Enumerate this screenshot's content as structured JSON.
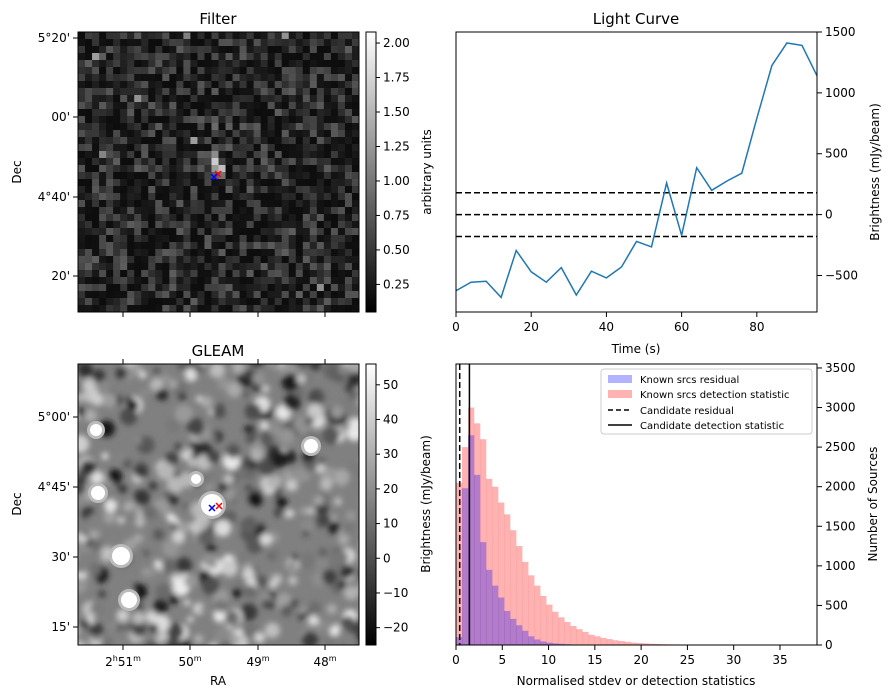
{
  "chart_data": [
    {
      "type": "heatmap",
      "title": "Filter",
      "ylabel": "Dec",
      "y_ticks": [
        "5°20'",
        "00'",
        "4°40'",
        "20'"
      ],
      "colorbar": {
        "label": "arbitrary units",
        "range": [
          0.05,
          2.08
        ],
        "ticks": [
          "0.25",
          "0.50",
          "0.75",
          "1.00",
          "1.25",
          "1.50",
          "1.75",
          "2.00"
        ],
        "tick_values": [
          0.25,
          0.5,
          0.75,
          1.0,
          1.25,
          1.5,
          1.75,
          2.0
        ]
      },
      "markers": [
        {
          "symbol": "x",
          "color": "#ff0000"
        },
        {
          "symbol": "x",
          "color": "#0000ff"
        }
      ]
    },
    {
      "type": "line",
      "title": "Light Curve",
      "xlabel": "Time (s)",
      "ylabel": "Brightness (mJy/beam)",
      "xlim": [
        0,
        96
      ],
      "ylim": [
        -800,
        1500
      ],
      "x_ticks": [
        0,
        20,
        40,
        60,
        80
      ],
      "y_ticks": [
        -500,
        0,
        500,
        1000,
        1500
      ],
      "series": [
        {
          "color": "#1f77b4",
          "x": [
            0,
            4,
            8,
            12,
            16,
            20,
            24,
            28,
            32,
            36,
            40,
            44,
            48,
            52,
            56,
            60,
            64,
            68,
            72,
            76,
            80,
            84,
            88,
            92,
            96
          ],
          "y": [
            -625,
            -555,
            -548,
            -680,
            -295,
            -470,
            -555,
            -435,
            -660,
            -465,
            -520,
            -430,
            -220,
            -265,
            260,
            -170,
            385,
            200,
            275,
            340,
            790,
            1225,
            1410,
            1390,
            1140
          ]
        }
      ],
      "hlines": [
        {
          "y": 180,
          "style": "dashed",
          "color": "#000000"
        },
        {
          "y": 0,
          "style": "dashed",
          "color": "#000000"
        },
        {
          "y": -180,
          "style": "dashed",
          "color": "#000000"
        }
      ]
    },
    {
      "type": "heatmap",
      "title": "GLEAM",
      "xlabel": "RA",
      "ylabel": "Dec",
      "y_ticks": [
        "5°00'",
        "4°45'",
        "30'",
        "15'"
      ],
      "x_ticks": [
        {
          "main": "2",
          "sup1": "h",
          "mid": "51",
          "sup2": "m"
        },
        {
          "main": "50",
          "sup2": "m"
        },
        {
          "main": "49",
          "sup2": "m"
        },
        {
          "main": "48",
          "sup2": "m"
        }
      ],
      "colorbar": {
        "label": "Brightness (mJy/beam)",
        "range": [
          -25,
          56
        ],
        "ticks": [
          "−20",
          "−10",
          "0",
          "10",
          "20",
          "30",
          "40",
          "50"
        ],
        "tick_values": [
          -20,
          -10,
          0,
          10,
          20,
          30,
          40,
          50
        ]
      },
      "markers": [
        {
          "symbol": "x",
          "color": "#ff0000"
        },
        {
          "symbol": "x",
          "color": "#0000ff"
        }
      ]
    },
    {
      "type": "bar",
      "xlabel": "Normalised stdev or detection statistics",
      "ylabel": "Number of Sources",
      "xlim": [
        0,
        39
      ],
      "ylim": [
        0,
        3550
      ],
      "x_ticks": [
        0,
        5,
        10,
        15,
        20,
        25,
        30,
        35
      ],
      "y_ticks": [
        0,
        500,
        1000,
        1500,
        2000,
        2500,
        3000,
        3500
      ],
      "bin_width": 0.65,
      "series": [
        {
          "name": "Known srcs residual",
          "color": "#0000ff",
          "bin_start": 0,
          "counts": [
            100,
            1980,
            2650,
            2150,
            1300,
            950,
            750,
            600,
            430,
            330,
            250,
            180,
            110,
            70,
            45,
            30,
            20,
            15,
            10,
            6
          ]
        },
        {
          "name": "Known srcs detection statistic",
          "color": "#ff0000",
          "bin_start": 0,
          "counts": [
            2050,
            2500,
            3000,
            2800,
            2600,
            2100,
            2000,
            1800,
            1650,
            1450,
            1250,
            1050,
            880,
            750,
            620,
            510,
            420,
            350,
            290,
            240,
            200,
            165,
            130,
            110,
            90,
            75,
            60,
            50,
            40,
            30,
            25,
            20,
            16,
            13,
            10,
            8,
            7,
            6,
            5,
            4,
            4,
            3,
            3,
            2,
            2,
            2,
            1,
            1,
            1,
            1
          ]
        }
      ],
      "vlines": [
        {
          "name": "Candidate residual",
          "x": 0.4,
          "style": "dashed",
          "color": "#000000"
        },
        {
          "name": "Candidate detection statistic",
          "x": 1.45,
          "style": "solid",
          "color": "#000000"
        }
      ],
      "legend": "top-right"
    }
  ]
}
